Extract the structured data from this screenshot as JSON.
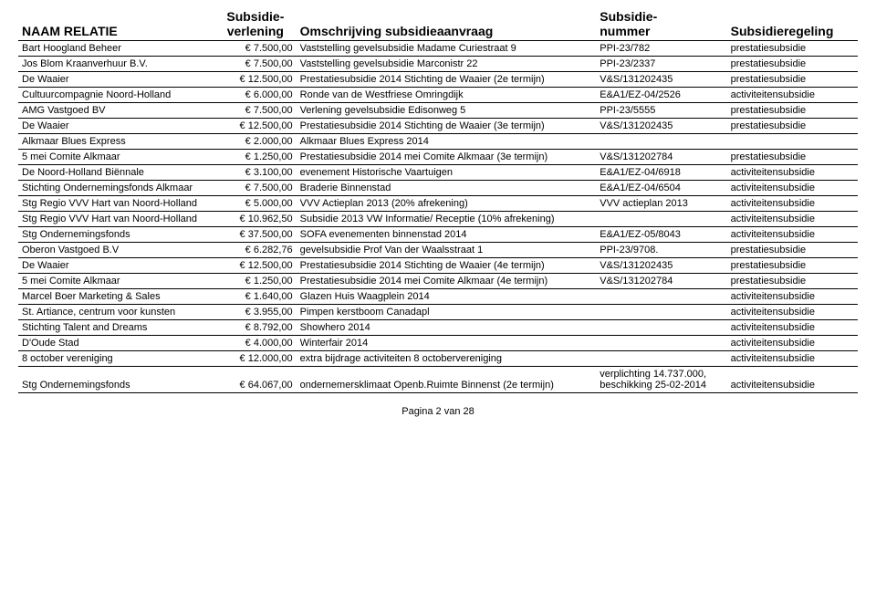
{
  "header": {
    "col1": "NAAM RELATIE",
    "col2_line1": "Subsidie-",
    "col2_line2": "verlening",
    "col3": "Omschrijving subsidieaanvraag",
    "col4_line1": "Subsidie-",
    "col4_line2": "nummer",
    "col5": "Subsidieregeling"
  },
  "rows": [
    {
      "name": "Bart Hoogland Beheer",
      "amount": "€ 7.500,00",
      "desc": "Vaststelling gevelsubsidie Madame Curiestraat 9",
      "num": "PPI-23/782",
      "scheme": "prestatiesubsidie"
    },
    {
      "name": "Jos Blom Kraanverhuur B.V.",
      "amount": "€ 7.500,00",
      "desc": "Vaststelling gevelsubsidie Marconistr 22",
      "num": "PPI-23/2337",
      "scheme": "prestatiesubsidie"
    },
    {
      "name": "De Waaier",
      "amount": "€ 12.500,00",
      "desc": "Prestatiesubsidie 2014 Stichting de Waaier (2e termijn)",
      "num": "V&S/131202435",
      "scheme": "prestatiesubsidie"
    },
    {
      "name": "Cultuurcompagnie Noord-Holland",
      "amount": "€ 6.000,00",
      "desc": "Ronde van de Westfriese Omringdijk",
      "num": "E&A1/EZ-04/2526",
      "scheme": "activiteitensubsidie"
    },
    {
      "name": "AMG Vastgoed BV",
      "amount": "€ 7.500,00",
      "desc": "Verlening gevelsubsidie Edisonweg 5",
      "num": "PPI-23/5555",
      "scheme": "prestatiesubsidie"
    },
    {
      "name": "De Waaier",
      "amount": "€ 12.500,00",
      "desc": "Prestatiesubsidie 2014 Stichting de Waaier (3e termijn)",
      "num": "V&S/131202435",
      "scheme": "prestatiesubsidie"
    },
    {
      "name": "Alkmaar Blues Express",
      "amount": "€ 2.000,00",
      "desc": "Alkmaar Blues Express 2014",
      "num": "",
      "scheme": ""
    },
    {
      "name": "5 mei Comite Alkmaar",
      "amount": "€ 1.250,00",
      "desc": "Prestatiesubsidie 2014 mei Comite Alkmaar (3e termijn)",
      "num": "V&S/131202784",
      "scheme": "prestatiesubsidie"
    },
    {
      "name": "De Noord-Holland Biënnale",
      "amount": "€ 3.100,00",
      "desc": "evenement Historische Vaartuigen",
      "num": "E&A1/EZ-04/6918",
      "scheme": "activiteitensubsidie"
    },
    {
      "name": "Stichting Ondernemingsfonds Alkmaar",
      "amount": "€ 7.500,00",
      "desc": "Braderie Binnenstad",
      "num": "E&A1/EZ-04/6504",
      "scheme": "activiteitensubsidie"
    },
    {
      "name": "Stg Regio VVV Hart van Noord-Holland",
      "amount": "€ 5.000,00",
      "desc": "VVV Actieplan 2013 (20% afrekening)",
      "num": "VVV actieplan 2013",
      "scheme": "activiteitensubsidie"
    },
    {
      "name": "Stg Regio VVV Hart van Noord-Holland",
      "amount": "€ 10.962,50",
      "desc": "Subsidie 2013 VW Informatie/ Receptie (10% afrekening)",
      "num": "",
      "scheme": "activiteitensubsidie"
    },
    {
      "name": "Stg Ondernemingsfonds",
      "amount": "€ 37.500,00",
      "desc": "SOFA evenementen binnenstad 2014",
      "num": "E&A1/EZ-05/8043",
      "scheme": "activiteitensubsidie"
    },
    {
      "name": "Oberon Vastgoed B.V",
      "amount": "€ 6.282,76",
      "desc": "gevelsubsidie Prof Van der Waalsstraat 1",
      "num": "PPI-23/9708.",
      "scheme": "prestatiesubsidie"
    },
    {
      "name": "De Waaier",
      "amount": "€ 12.500,00",
      "desc": "Prestatiesubsidie 2014 Stichting de Waaier (4e termijn)",
      "num": "V&S/131202435",
      "scheme": "prestatiesubsidie"
    },
    {
      "name": "5 mei Comite Alkmaar",
      "amount": "€ 1.250,00",
      "desc": "Prestatiesubsidie 2014 mei Comite Alkmaar (4e termijn)",
      "num": "V&S/131202784",
      "scheme": "prestatiesubsidie"
    },
    {
      "name": "Marcel Boer Marketing & Sales",
      "amount": "€ 1.640,00",
      "desc": "Glazen Huis Waagplein 2014",
      "num": "",
      "scheme": "activiteitensubsidie"
    },
    {
      "name": "St. Artiance, centrum voor kunsten",
      "amount": "€ 3.955,00",
      "desc": "Pimpen kerstboom Canadapl",
      "num": "",
      "scheme": "activiteitensubsidie"
    },
    {
      "name": "Stichting Talent and Dreams",
      "amount": "€ 8.792,00",
      "desc": "Showhero 2014",
      "num": "",
      "scheme": "activiteitensubsidie"
    },
    {
      "name": "D'Oude Stad",
      "amount": "€ 4.000,00",
      "desc": "Winterfair 2014",
      "num": "",
      "scheme": "activiteitensubsidie"
    },
    {
      "name": "8 october vereniging",
      "amount": "€ 12.000,00",
      "desc": "extra bijdrage activiteiten 8 octobervereniging",
      "num": "",
      "scheme": "activiteitensubsidie"
    },
    {
      "name": "Stg Ondernemingsfonds",
      "amount": "€ 64.067,00",
      "desc": "ondernemersklimaat Openb.Ruimte Binnenst (2e termijn)",
      "num": "verplichting 14.737.000, beschikking 25-02-2014",
      "scheme": "activiteitensubsidie"
    }
  ],
  "footer": "Pagina 2 van 28"
}
